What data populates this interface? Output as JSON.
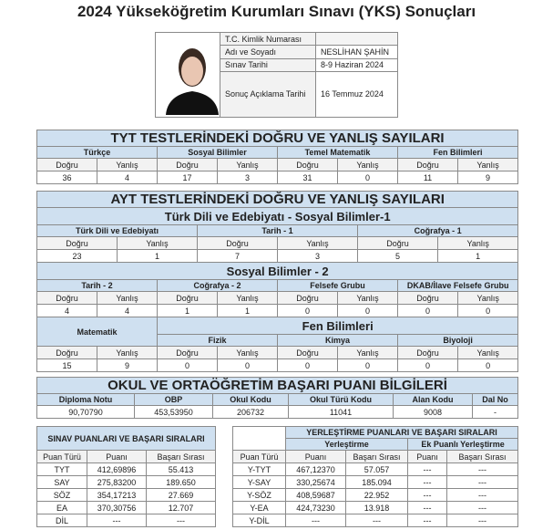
{
  "title": "2024 Yükseköğretim Kurumları Sınavı (YKS) Sonuçları",
  "info": {
    "rows": [
      [
        "T.C. Kimlik Numarası",
        ""
      ],
      [
        "Adı ve Soyadı",
        "NESLİHAN ŞAHİN"
      ],
      [
        "Sınav Tarihi",
        "8-9 Haziran 2024"
      ],
      [
        "Sonuç Açıklama Tarihi",
        "16 Temmuz 2024"
      ]
    ]
  },
  "labels": {
    "d": "Doğru",
    "y": "Yanlış"
  },
  "tyt": {
    "title": "TYT TESTLERİNDEKİ DOĞRU VE YANLIŞ SAYILARI",
    "subjects": [
      "Türkçe",
      "Sosyal Bilimler",
      "Temel Matematik",
      "Fen Bilimleri"
    ],
    "values": [
      "36",
      "4",
      "17",
      "3",
      "31",
      "0",
      "11",
      "9"
    ]
  },
  "ayt": {
    "title": "AYT TESTLERİNDEKİ DOĞRU VE YANLIŞ SAYILARI",
    "s1": {
      "title": "Türk Dili ve Edebiyatı - Sosyal Bilimler-1",
      "subjects": [
        "Türk Dili ve Edebiyatı",
        "Tarih - 1",
        "Coğrafya - 1"
      ],
      "values": [
        "23",
        "1",
        "7",
        "3",
        "5",
        "1"
      ]
    },
    "s2": {
      "title": "Sosyal Bilimler - 2",
      "subjects": [
        "Tarih - 2",
        "Coğrafya - 2",
        "Felsefe Grubu",
        "DKAB/İlave Felsefe Grubu"
      ],
      "values": [
        "4",
        "4",
        "1",
        "1",
        "0",
        "0",
        "0",
        "0"
      ]
    },
    "mat": {
      "title": "Matematik"
    },
    "fen": {
      "title": "Fen Bilimleri",
      "subjects": [
        "Fizik",
        "Kimya",
        "Biyoloji"
      ]
    },
    "mf_values": [
      "15",
      "9",
      "0",
      "0",
      "0",
      "0",
      "0",
      "0"
    ]
  },
  "okul": {
    "title": "OKUL VE ORTAÖĞRETİM BAŞARI PUANI BİLGİLERİ",
    "headers": [
      "Diploma Notu",
      "OBP",
      "Okul Kodu",
      "Okul Türü Kodu",
      "Alan Kodu",
      "Dal No"
    ],
    "values": [
      "90,70790",
      "453,53950",
      "206732",
      "11041",
      "9008",
      "-"
    ]
  },
  "sinav": {
    "title": "SINAV PUANLARI VE BAŞARI SIRALARI",
    "headers": [
      "Puan Türü",
      "Puanı",
      "Başarı Sırası"
    ],
    "rows": [
      [
        "TYT",
        "412,69896",
        "55.413"
      ],
      [
        "SAY",
        "275,83200",
        "189.650"
      ],
      [
        "SÖZ",
        "354,17213",
        "27.669"
      ],
      [
        "EA",
        "370,30756",
        "12.707"
      ],
      [
        "DİL",
        "---",
        "---"
      ]
    ]
  },
  "yer": {
    "title": "YERLEŞTİRME PUANLARI VE BAŞARI SIRALARI",
    "sub": [
      "Yerleştirme",
      "Ek Puanlı Yerleştirme"
    ],
    "headers": [
      "Puan Türü",
      "Puanı",
      "Başarı Sırası",
      "Puanı",
      "Başarı Sırası"
    ],
    "rows": [
      [
        "Y-TYT",
        "467,12370",
        "57.057",
        "---",
        "---"
      ],
      [
        "Y-SAY",
        "330,25674",
        "185.094",
        "---",
        "---"
      ],
      [
        "Y-SÖZ",
        "408,59687",
        "22.952",
        "---",
        "---"
      ],
      [
        "Y-EA",
        "424,73230",
        "13.918",
        "---",
        "---"
      ],
      [
        "Y-DİL",
        "---",
        "---",
        "---",
        "---"
      ]
    ]
  }
}
